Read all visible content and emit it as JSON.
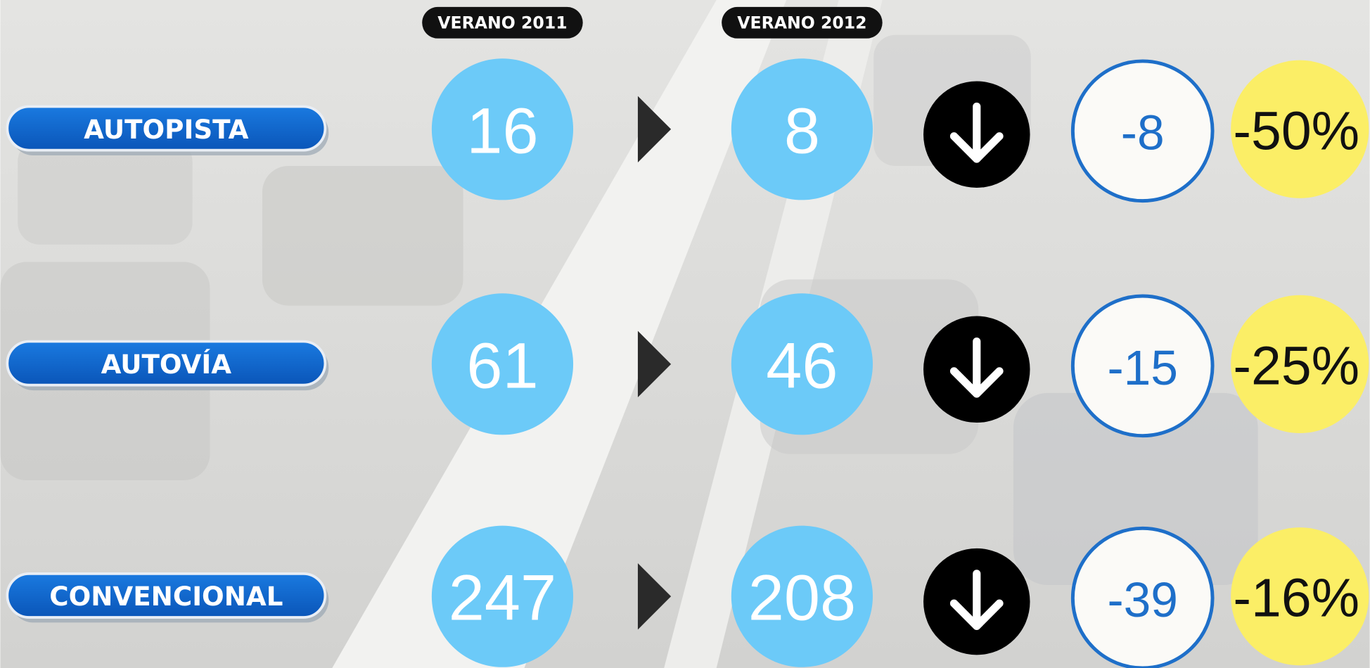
{
  "headers": [
    "VERANO 2011",
    "VERANO 2012"
  ],
  "rows": [
    {
      "label": "AUTOPISTA",
      "v2011": "16",
      "v2012": "8",
      "diff": "-8",
      "pct": "-50%"
    },
    {
      "label": "AUTOVÍA",
      "v2011": "61",
      "v2012": "46",
      "diff": "-15",
      "pct": "-25%"
    },
    {
      "label": "CONVENCIONAL",
      "v2011": "247",
      "v2012": "208",
      "diff": "-39",
      "pct": "-16%"
    }
  ]
}
